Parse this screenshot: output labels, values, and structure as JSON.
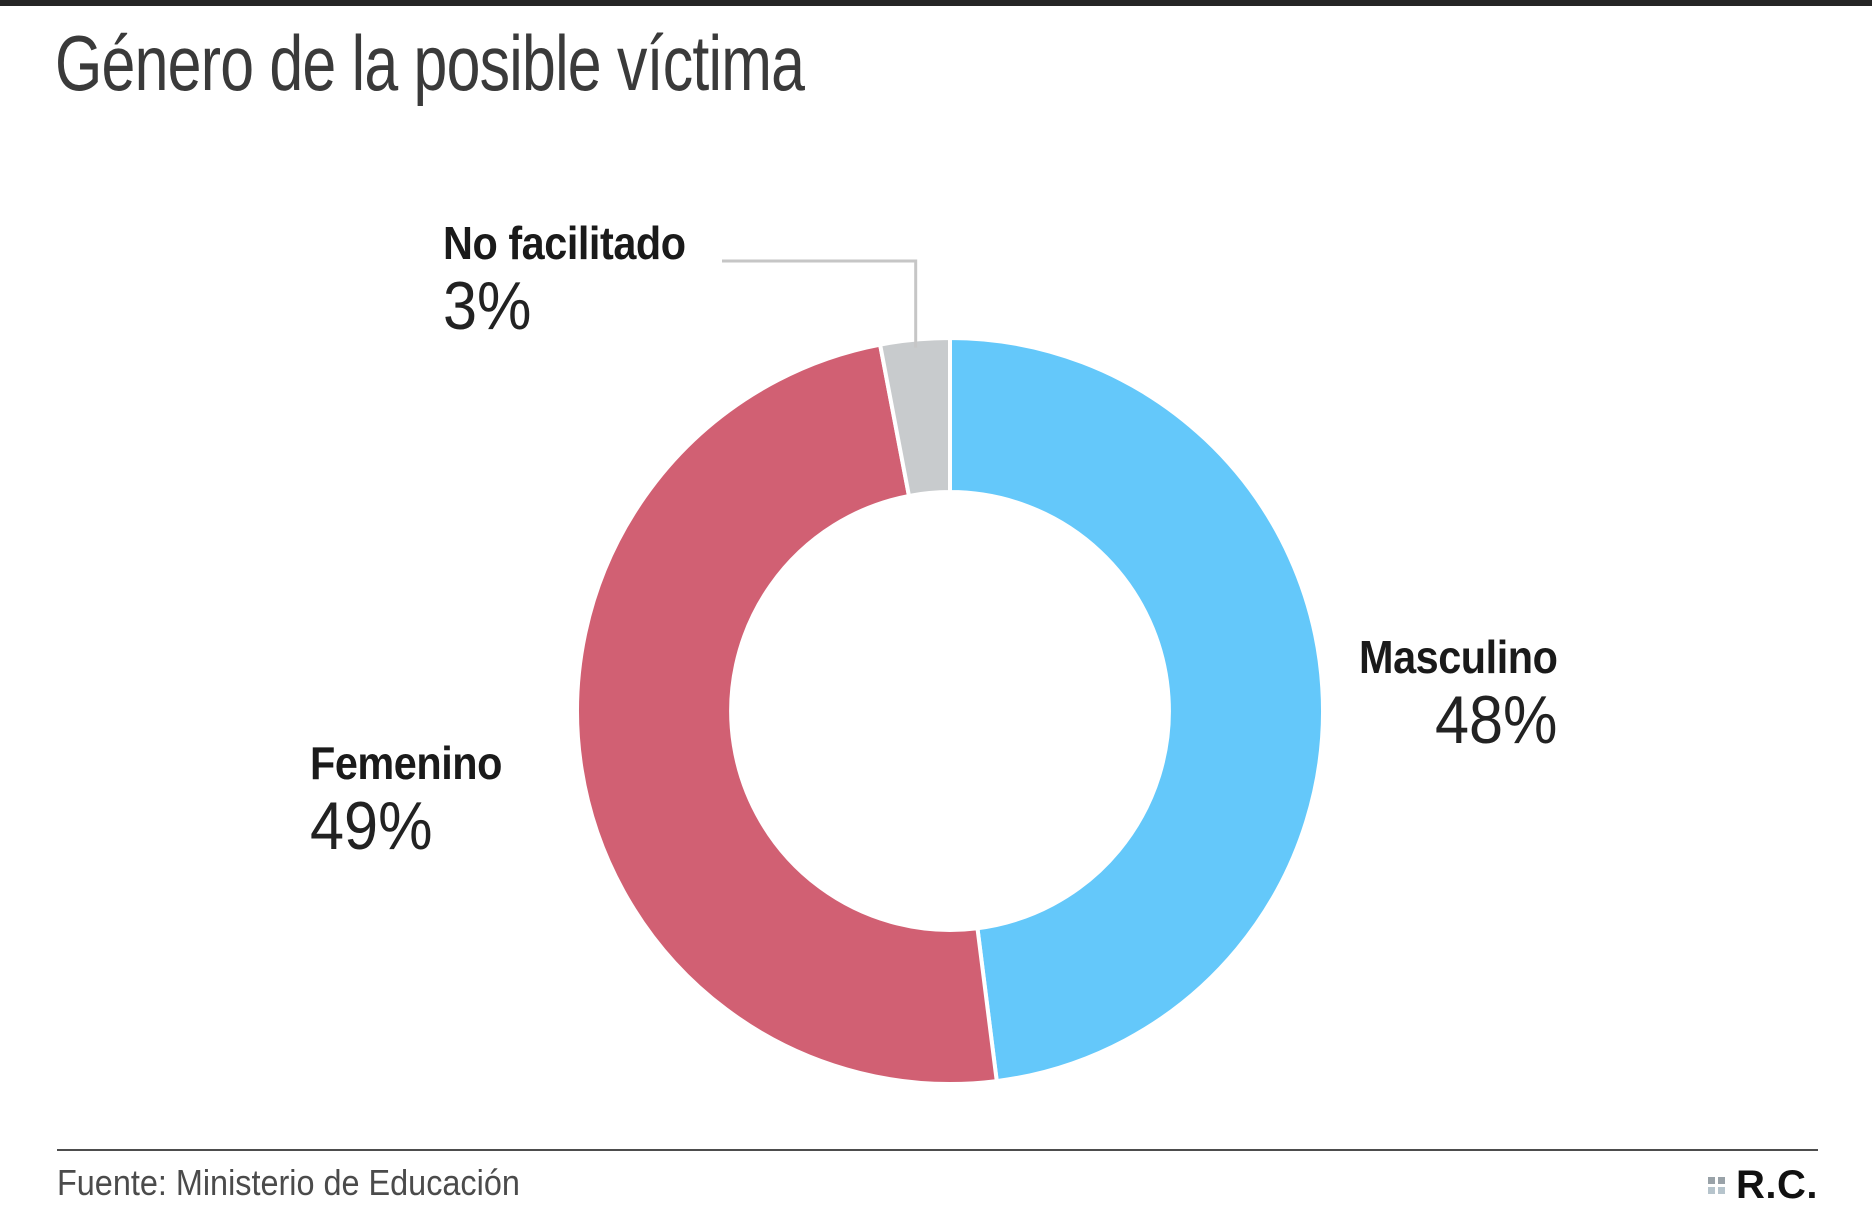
{
  "page": {
    "title": "Género de la posible víctima",
    "source": "Fuente: Ministerio de Educación",
    "brand": "R.C."
  },
  "chart_data": {
    "type": "pie",
    "donut": true,
    "title": "Género de la posible víctima",
    "start_angle_deg": 0,
    "direction": "clockwise",
    "inner_radius_ratio": 0.587,
    "slices": [
      {
        "label": "Masculino",
        "value": 48,
        "percent_label": "48%",
        "color": "#64C8FA"
      },
      {
        "label": "Femenino",
        "value": 49,
        "percent_label": "49%",
        "color": "#D16073"
      },
      {
        "label": "No facilitado",
        "value": 3,
        "percent_label": "3%",
        "color": "#C8CBCD"
      }
    ],
    "separator_color": "#ffffff",
    "leader_line_color": "#c6c6c6",
    "legend_position": "labels-around-donut",
    "source": "Fuente: Ministerio de Educación"
  }
}
